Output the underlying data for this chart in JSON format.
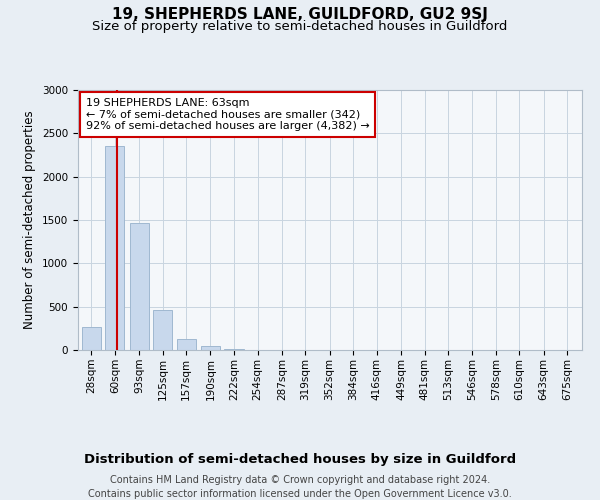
{
  "title": "19, SHEPHERDS LANE, GUILDFORD, GU2 9SJ",
  "subtitle": "Size of property relative to semi-detached houses in Guildford",
  "xlabel": "Distribution of semi-detached houses by size in Guildford",
  "ylabel": "Number of semi-detached properties",
  "footer_line1": "Contains HM Land Registry data © Crown copyright and database right 2024.",
  "footer_line2": "Contains public sector information licensed under the Open Government Licence v3.0.",
  "annotation_line1": "19 SHEPHERDS LANE: 63sqm",
  "annotation_line2": "← 7% of semi-detached houses are smaller (342)",
  "annotation_line3": "92% of semi-detached houses are larger (4,382) →",
  "property_size": 63,
  "bar_color": "#c8d8ec",
  "bar_edge_color": "#a0b8d0",
  "red_line_color": "#cc0000",
  "annotation_box_edge_color": "#cc0000",
  "background_color": "#e8eef4",
  "plot_bg_color": "#f4f7fa",
  "grid_color": "#c8d4e0",
  "categories": [
    28,
    60,
    93,
    125,
    157,
    190,
    222,
    254,
    287,
    319,
    352,
    384,
    416,
    449,
    481,
    513,
    546,
    578,
    610,
    643,
    675
  ],
  "values": [
    270,
    2350,
    1460,
    460,
    125,
    50,
    15,
    5,
    2,
    1,
    1,
    0,
    0,
    0,
    0,
    0,
    0,
    0,
    0,
    0,
    0
  ],
  "ylim": [
    0,
    3000
  ],
  "yticks": [
    0,
    500,
    1000,
    1500,
    2000,
    2500,
    3000
  ],
  "title_fontsize": 11,
  "subtitle_fontsize": 9.5,
  "xlabel_fontsize": 9.5,
  "ylabel_fontsize": 8.5,
  "tick_fontsize": 7.5,
  "annotation_fontsize": 8,
  "footer_fontsize": 7
}
